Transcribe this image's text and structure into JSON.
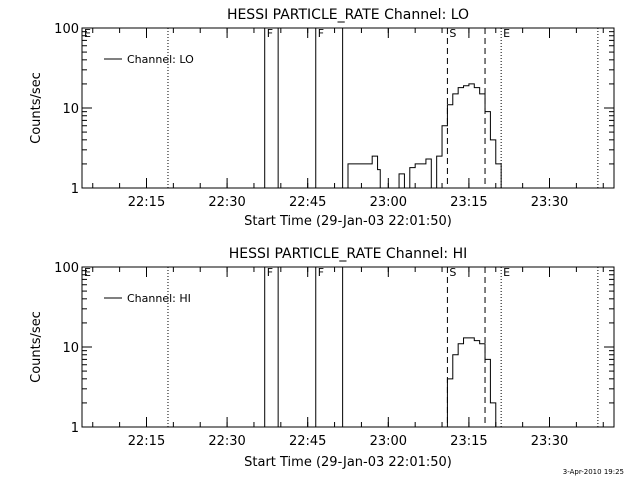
{
  "footer": {
    "timestamp": "3-Apr-2010 19:25"
  },
  "chart_data": [
    {
      "type": "line",
      "title": "HESSI PARTICLE_RATE Channel: LO",
      "xlabel": "Start Time (29-Jan-03 22:01:50)",
      "ylabel": "Counts/sec",
      "y_scale": "log",
      "ylim": [
        1,
        100
      ],
      "xlim": [
        "22:03",
        "23:42"
      ],
      "x_tick_labels": [
        "22:15",
        "22:30",
        "22:45",
        "23:00",
        "23:15",
        "23:30"
      ],
      "y_tick_labels": [
        "1",
        "10",
        "100"
      ],
      "legend": {
        "position": "top-left",
        "entries": [
          "Channel: LO"
        ]
      },
      "series": [
        {
          "name": "Channel: LO",
          "x": [
            "22:52",
            "22:52.5",
            "22:53",
            "22:55",
            "22:56",
            "22:57",
            "22:58",
            "22:58.5",
            "23:00",
            "23:02",
            "23:03",
            "23:04",
            "23:05",
            "23:06",
            "23:07",
            "23:08",
            "23:09",
            "23:10",
            "23:11",
            "23:12",
            "23:13",
            "23:14",
            "23:15",
            "23:16",
            "23:17",
            "23:18",
            "23:19",
            "23:20",
            "23:21"
          ],
          "y": [
            1,
            2,
            2,
            2,
            2,
            2.5,
            1.7,
            1,
            1,
            1.5,
            1,
            1.8,
            2,
            2,
            2.3,
            1,
            2.5,
            6,
            11,
            15,
            18,
            19,
            20,
            18,
            15,
            9,
            4,
            2,
            1
          ]
        }
      ],
      "markers": [
        {
          "label": "E",
          "time": "22:03",
          "style": "dotted"
        },
        {
          "time": "22:19",
          "style": "dotted"
        },
        {
          "label": "F",
          "time": "22:37",
          "style": "solid"
        },
        {
          "time": "22:39.5",
          "style": "solid"
        },
        {
          "label": "F",
          "time": "22:46.5",
          "style": "solid"
        },
        {
          "time": "22:51.5",
          "style": "solid"
        },
        {
          "label": "S",
          "time": "23:11",
          "style": "dashed"
        },
        {
          "time": "23:18",
          "style": "dashed"
        },
        {
          "label": "E",
          "time": "23:21",
          "style": "dotted"
        },
        {
          "time": "23:39",
          "style": "dotted"
        }
      ]
    },
    {
      "type": "line",
      "title": "HESSI PARTICLE_RATE Channel: HI",
      "xlabel": "Start Time (29-Jan-03 22:01:50)",
      "ylabel": "Counts/sec",
      "y_scale": "log",
      "ylim": [
        1,
        100
      ],
      "xlim": [
        "22:03",
        "23:42"
      ],
      "x_tick_labels": [
        "22:15",
        "22:30",
        "22:45",
        "23:00",
        "23:15",
        "23:30"
      ],
      "y_tick_labels": [
        "1",
        "10",
        "100"
      ],
      "legend": {
        "position": "top-left",
        "entries": [
          "Channel: HI"
        ]
      },
      "series": [
        {
          "name": "Channel: HI",
          "x": [
            "23:10",
            "23:11",
            "23:12",
            "23:13",
            "23:14",
            "23:15",
            "23:16",
            "23:17",
            "23:18",
            "23:19",
            "23:20"
          ],
          "y": [
            1,
            4,
            8,
            11,
            13,
            13,
            12,
            11,
            7,
            2,
            1
          ]
        }
      ],
      "markers": [
        {
          "label": "E",
          "time": "22:03",
          "style": "dotted"
        },
        {
          "time": "22:19",
          "style": "dotted"
        },
        {
          "label": "F",
          "time": "22:37",
          "style": "solid"
        },
        {
          "time": "22:39.5",
          "style": "solid"
        },
        {
          "label": "F",
          "time": "22:46.5",
          "style": "solid"
        },
        {
          "time": "22:51.5",
          "style": "solid"
        },
        {
          "label": "S",
          "time": "23:11",
          "style": "dashed"
        },
        {
          "time": "23:18",
          "style": "dashed"
        },
        {
          "label": "E",
          "time": "23:21",
          "style": "dotted"
        },
        {
          "time": "23:39",
          "style": "dotted"
        }
      ]
    }
  ]
}
